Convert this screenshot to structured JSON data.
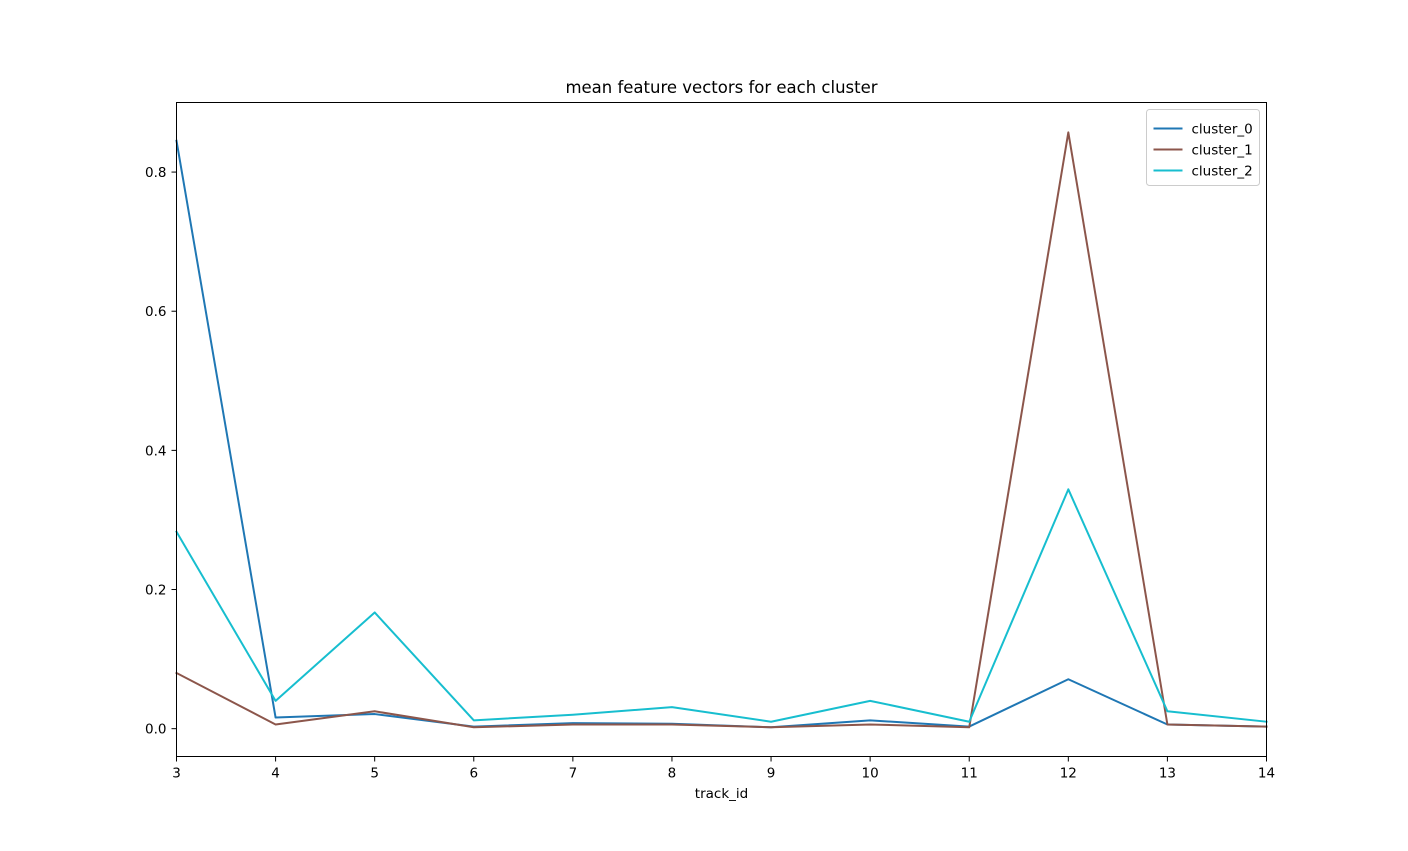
{
  "chart_data": {
    "type": "line",
    "title": "mean feature vectors for each cluster",
    "xlabel": "track_id",
    "ylabel": "",
    "x": [
      3,
      4,
      5,
      6,
      7,
      8,
      9,
      10,
      11,
      12,
      13,
      14
    ],
    "xlim": [
      3,
      14
    ],
    "ylim": [
      -0.04,
      0.9
    ],
    "xticks": [
      "3",
      "4",
      "5",
      "6",
      "7",
      "8",
      "9",
      "10",
      "11",
      "12",
      "13",
      "14"
    ],
    "yticks": [
      "0.0",
      "0.2",
      "0.4",
      "0.6",
      "0.8"
    ],
    "legend_position": "top-right",
    "grid": false,
    "series": [
      {
        "name": "cluster_0",
        "color": "#1f77b4",
        "values": [
          0.845,
          0.016,
          0.021,
          0.003,
          0.008,
          0.007,
          0.002,
          0.012,
          0.003,
          0.071,
          0.006,
          0.003
        ]
      },
      {
        "name": "cluster_1",
        "color": "#8c564b",
        "values": [
          0.08,
          0.006,
          0.025,
          0.002,
          0.006,
          0.006,
          0.002,
          0.006,
          0.002,
          0.857,
          0.006,
          0.003
        ]
      },
      {
        "name": "cluster_2",
        "color": "#17becf",
        "values": [
          0.283,
          0.04,
          0.167,
          0.012,
          0.02,
          0.031,
          0.01,
          0.04,
          0.01,
          0.344,
          0.025,
          0.01
        ]
      }
    ]
  }
}
